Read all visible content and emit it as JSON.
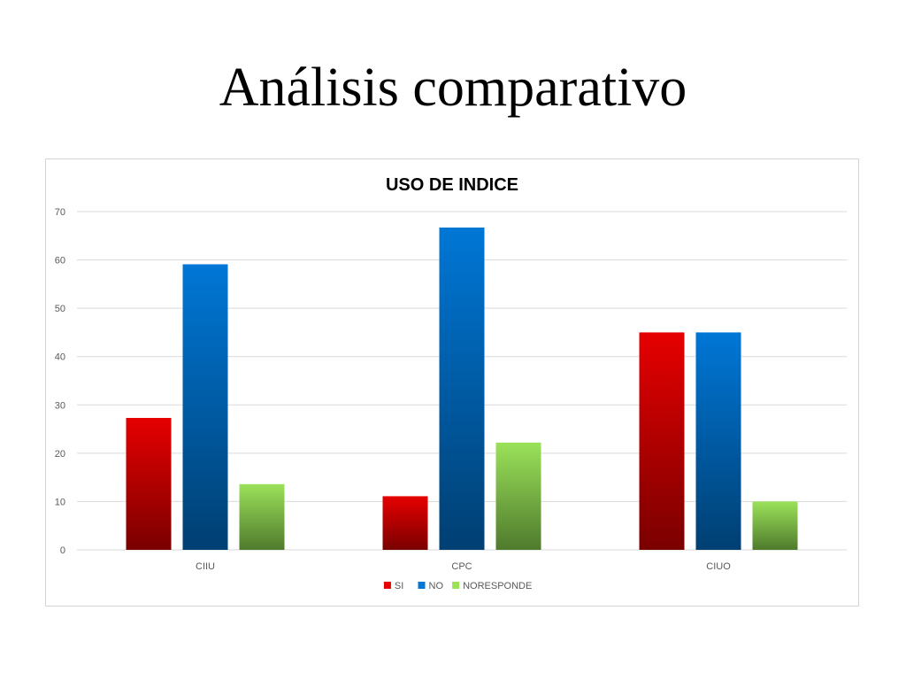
{
  "slide": {
    "title": "Análisis comparativo"
  },
  "chart_data": {
    "type": "bar",
    "title": "USO DE INDICE",
    "categories": [
      "CIIU",
      "CPC",
      "CIUO"
    ],
    "series": [
      {
        "name": "SI",
        "values": [
          27.3,
          11.1,
          45
        ],
        "color_top": "#e60000",
        "color_bottom": "#7a0000"
      },
      {
        "name": "NO",
        "values": [
          59.1,
          66.7,
          45
        ],
        "color_top": "#0077d6",
        "color_bottom": "#003f72"
      },
      {
        "name": "NORESPONDE",
        "values": [
          13.6,
          22.2,
          10
        ],
        "color_top": "#9be25a",
        "color_bottom": "#4f7a2c"
      }
    ],
    "ylim": [
      0,
      70
    ],
    "yticks": [
      "0",
      "10",
      "20",
      "30",
      "40",
      "50",
      "60",
      "70"
    ],
    "xlabel": "",
    "ylabel": "",
    "grid": true,
    "legend_position": "bottom"
  }
}
